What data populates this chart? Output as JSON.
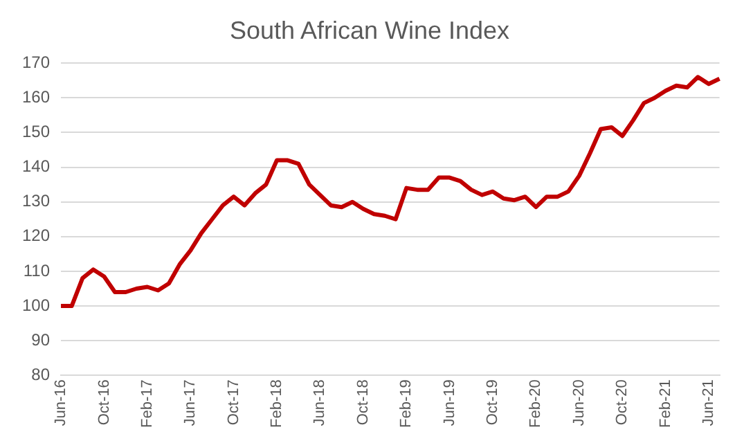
{
  "chart_data": {
    "type": "line",
    "title": "South African Wine Index",
    "categories": [
      "Jun-16",
      null,
      null,
      null,
      "Oct-16",
      null,
      null,
      null,
      "Feb-17",
      null,
      null,
      null,
      "Jun-17",
      null,
      null,
      null,
      "Oct-17",
      null,
      null,
      null,
      "Feb-18",
      null,
      null,
      null,
      "Jun-18",
      null,
      null,
      null,
      "Oct-18",
      null,
      null,
      null,
      "Feb-19",
      null,
      null,
      null,
      "Jun-19",
      null,
      null,
      null,
      "Oct-19",
      null,
      null,
      null,
      "Feb-20",
      null,
      null,
      null,
      "Jun-20",
      null,
      null,
      null,
      "Oct-20",
      null,
      null,
      null,
      "Feb-21",
      null,
      null,
      null,
      "Jun-21",
      null
    ],
    "series": [
      {
        "color": "#c00000",
        "values": [
          100,
          100,
          108,
          110.5,
          108.5,
          104,
          104,
          105,
          105.5,
          104.5,
          106.5,
          112,
          116,
          121,
          125,
          129,
          131.5,
          129,
          132.5,
          135,
          142,
          142,
          141,
          135,
          132,
          129,
          128.5,
          130,
          128,
          126.5,
          126,
          125,
          134,
          133.5,
          133.5,
          137,
          137,
          136,
          133.5,
          132,
          133,
          131,
          130.5,
          131.5,
          128.5,
          131.5,
          131.5,
          133,
          137.5,
          144,
          151,
          151.5,
          149,
          153.5,
          158.5,
          160,
          162,
          163.5,
          163,
          166,
          164,
          165.5
        ]
      }
    ],
    "ylim": [
      80,
      170
    ],
    "yticks": [
      80,
      90,
      100,
      110,
      120,
      130,
      140,
      150,
      160,
      170
    ],
    "grid": "y",
    "legend": false,
    "marker": "none",
    "line_style": "solid"
  }
}
